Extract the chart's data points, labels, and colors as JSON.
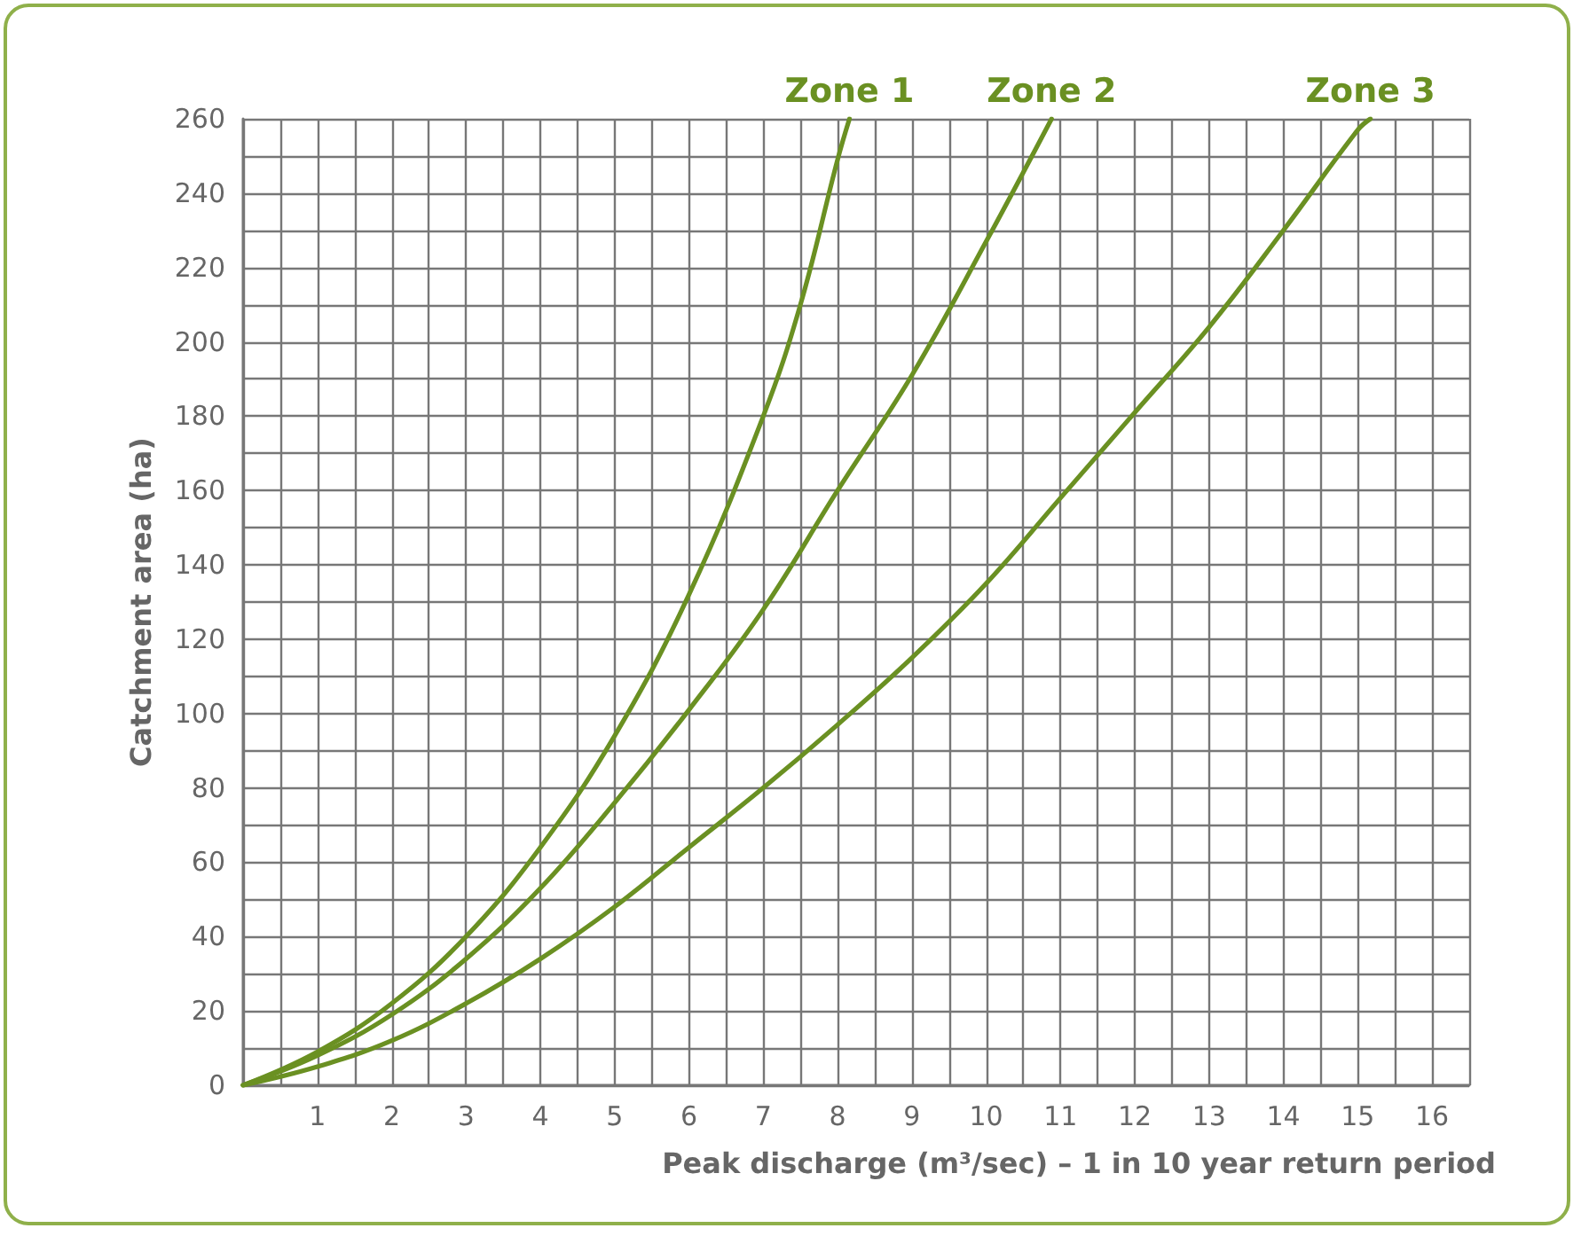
{
  "chart_data": {
    "type": "line",
    "xlabel": "Peak discharge (m³/sec) – 1 in 10 year return period",
    "ylabel": "Catchment area (ha)",
    "series": [
      {
        "name": "Zone 1",
        "color": "#6a9022",
        "x": [
          0,
          1,
          2,
          3,
          4,
          5,
          6,
          7,
          7.5,
          8,
          8.16
        ],
        "values": [
          0,
          9,
          22,
          40,
          64,
          94,
          132,
          180,
          210,
          249,
          260
        ]
      },
      {
        "name": "Zone 2",
        "color": "#6a9022",
        "x": [
          0,
          1,
          2,
          3,
          4,
          5,
          6,
          7,
          8,
          9,
          10,
          10.88
        ],
        "values": [
          0,
          8,
          19,
          34,
          53,
          76,
          101,
          128,
          160,
          191,
          227,
          260
        ]
      },
      {
        "name": "Zone 3",
        "color": "#6a9022",
        "x": [
          0,
          1,
          2,
          3,
          4,
          5,
          6,
          7,
          8,
          9,
          10,
          11,
          12,
          13,
          14,
          15,
          15.17
        ],
        "values": [
          0,
          5,
          12,
          22,
          34,
          48,
          64,
          80,
          97,
          115,
          135,
          158,
          181,
          204,
          230,
          257,
          260
        ]
      }
    ],
    "xlim": [
      0,
      16.5
    ],
    "xticks": [
      {
        "value": 0,
        "label": null
      },
      {
        "value": 0.5,
        "label": null
      },
      1,
      {
        "value": 1.5,
        "label": null
      },
      2,
      {
        "value": 2.5,
        "label": null
      },
      3,
      {
        "value": 3.5,
        "label": null
      },
      4,
      {
        "value": 4.5,
        "label": null
      },
      5,
      {
        "value": 5.5,
        "label": null
      },
      6,
      {
        "value": 6.5,
        "label": null
      },
      7,
      {
        "value": 7.5,
        "label": null
      },
      8,
      {
        "value": 8.5,
        "label": null
      },
      9,
      {
        "value": 9.5,
        "label": null
      },
      10,
      {
        "value": 10.5,
        "label": null
      },
      11,
      {
        "value": 11.5,
        "label": null
      },
      12,
      {
        "value": 12.5,
        "label": null
      },
      13,
      {
        "value": 13.5,
        "label": null
      },
      14,
      {
        "value": 14.5,
        "label": null
      },
      15,
      {
        "value": 15.5,
        "label": null
      },
      16,
      {
        "value": 16.5,
        "label": null
      }
    ],
    "ylim": [
      0,
      260
    ],
    "yticks": [
      0,
      {
        "value": 10,
        "label": null
      },
      20,
      {
        "value": 30,
        "label": null
      },
      40,
      {
        "value": 50,
        "label": null
      },
      60,
      {
        "value": 70,
        "label": null
      },
      80,
      {
        "value": 90,
        "label": null
      },
      100,
      {
        "value": 110,
        "label": null
      },
      120,
      {
        "value": 130,
        "label": null
      },
      140,
      {
        "value": 150,
        "label": null
      },
      160,
      {
        "value": 170,
        "label": null
      },
      180,
      {
        "value": 190,
        "label": null
      },
      200,
      {
        "value": 210,
        "label": null
      },
      220,
      {
        "value": 230,
        "label": null
      },
      240,
      {
        "value": 250,
        "label": null
      },
      260
    ],
    "grid": true,
    "legend": false
  }
}
